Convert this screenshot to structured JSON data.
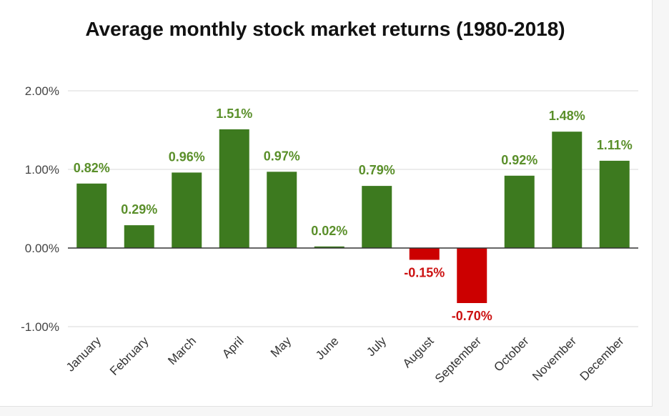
{
  "chart_data": {
    "type": "bar",
    "title": "Average monthly stock market returns (1980-2018)",
    "xlabel": "",
    "ylabel": "",
    "ylim": [
      -1.0,
      2.0
    ],
    "yticks": [
      2.0,
      1.0,
      0.0,
      -1.0
    ],
    "ytick_labels": [
      "2.00%",
      "1.00%",
      "0.00%",
      "-1.00%"
    ],
    "grid": true,
    "categories": [
      "January",
      "February",
      "March",
      "April",
      "May",
      "June",
      "July",
      "August",
      "September",
      "October",
      "November",
      "December"
    ],
    "values": [
      0.82,
      0.29,
      0.96,
      1.51,
      0.97,
      0.02,
      0.79,
      -0.15,
      -0.7,
      0.92,
      1.48,
      1.11
    ],
    "data_labels": [
      "0.82%",
      "0.29%",
      "0.96%",
      "1.51%",
      "0.97%",
      "0.02%",
      "0.79%",
      "-0.15%",
      "-0.70%",
      "0.92%",
      "1.48%",
      "1.11%"
    ],
    "colors": {
      "positive_bar": "#3d7a1f",
      "negative_bar": "#cc0000",
      "positive_label": "#5a8f2a",
      "negative_label": "#cc1111",
      "gridline": "#d9d9d9",
      "zero_line": "#333333"
    }
  }
}
